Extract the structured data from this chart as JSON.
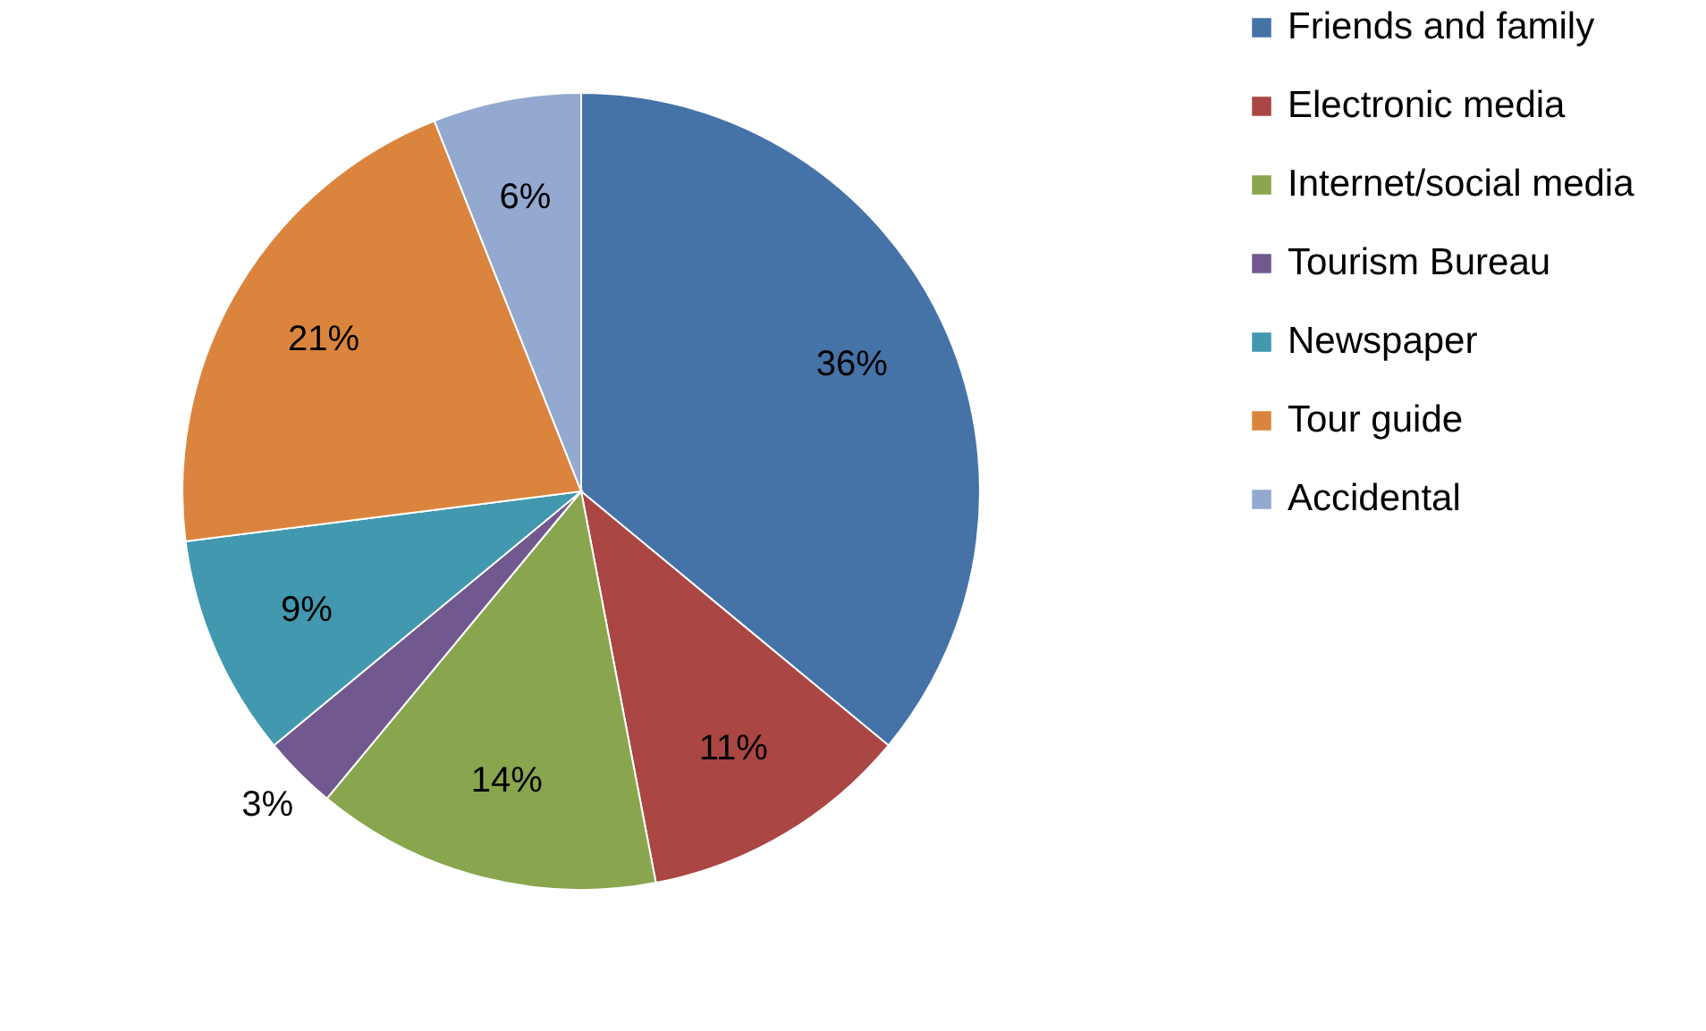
{
  "chart_data": {
    "type": "pie",
    "categories": [
      "Friends and family",
      " Electronic media",
      "Internet/social media",
      "Tourism Bureau",
      "Newspaper",
      "Tour guide",
      "Accidental"
    ],
    "values": [
      36,
      11,
      14,
      3,
      9,
      21,
      6
    ],
    "value_labels": [
      "36%",
      "11%",
      "14%",
      "3%",
      "9%",
      "21%",
      "6%"
    ],
    "colors": [
      "#4572a7",
      "#aa4643",
      "#89a54e",
      "#71588f",
      "#4198af",
      "#db843d",
      "#93a9cf"
    ],
    "legend": "right"
  }
}
